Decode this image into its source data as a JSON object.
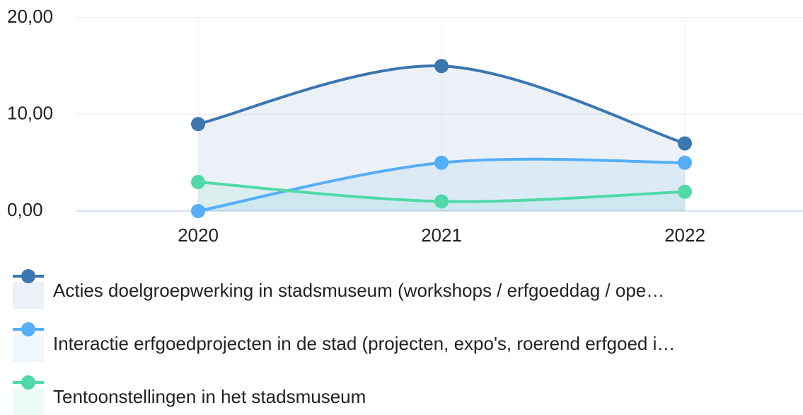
{
  "chart_data": {
    "type": "line",
    "categories": [
      "2020",
      "2021",
      "2022"
    ],
    "series": [
      {
        "name": "Acties doelgroepwerking in stadsmuseum (workshops / erfgoeddag / ope…",
        "color": "#3c76b1",
        "values": [
          9,
          15,
          7
        ]
      },
      {
        "name": "Interactie erfgoedprojecten in de stad (projecten, expo's, roerend erfgoed i…",
        "color": "#56aef8",
        "values": [
          0,
          5,
          5
        ]
      },
      {
        "name": "Tentoonstellingen in het stadsmuseum",
        "color": "#50d9a8",
        "values": [
          3,
          1,
          2
        ]
      }
    ],
    "ylim": [
      0,
      20
    ],
    "yticks": [
      {
        "value": 0,
        "label": "0,00"
      },
      {
        "value": 10,
        "label": "10,00"
      },
      {
        "value": 20,
        "label": "20,00"
      }
    ],
    "grid": true,
    "legend": "bottom"
  }
}
